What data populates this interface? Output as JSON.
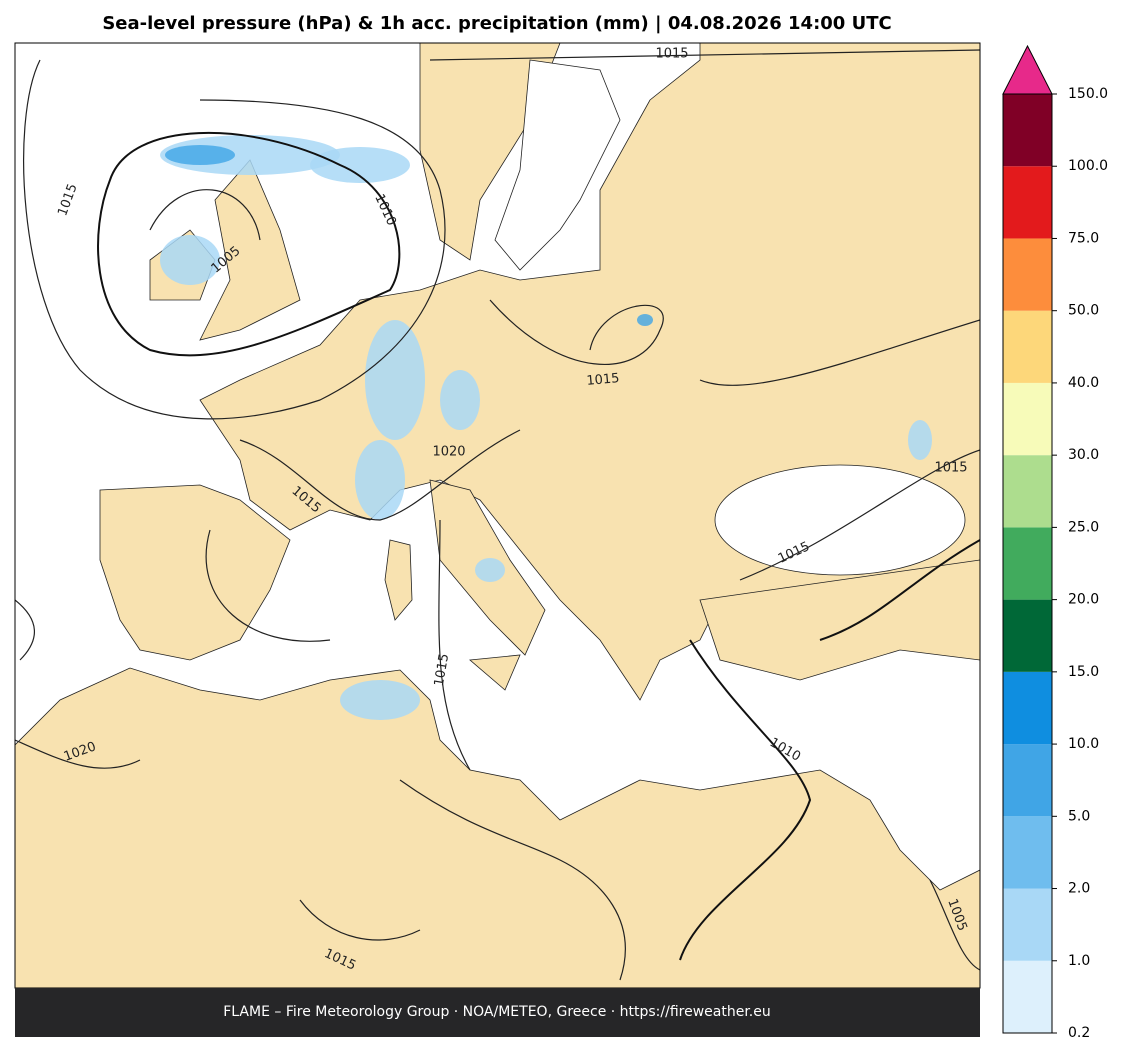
{
  "title": "Sea-level pressure (hPa) & 1h acc. precipitation (mm)  |  04.08.2026 14:00 UTC",
  "contour_labels": [
    "1015",
    "1015",
    "1010",
    "1005",
    "1015",
    "1020",
    "1015",
    "1015",
    "1015",
    "1020",
    "1015",
    "1010",
    "1015",
    "1005"
  ],
  "colorbar": {
    "ticks": [
      0.2,
      {
        "value": 1,
        "label": "1.0"
      },
      {
        "value": 2,
        "label": "2.0"
      },
      {
        "value": 5,
        "label": "5.0"
      },
      {
        "value": 10,
        "label": "10.0"
      },
      {
        "value": 15,
        "label": "15.0"
      },
      {
        "value": 20,
        "label": "20.0"
      },
      {
        "value": 25,
        "label": "25.0"
      },
      {
        "value": 30,
        "label": "30.0"
      },
      {
        "value": 40,
        "label": "40.0"
      },
      {
        "value": 50,
        "label": "50.0"
      },
      {
        "value": 75,
        "label": "75.0"
      },
      {
        "value": 100,
        "label": "100.0"
      },
      {
        "value": 150,
        "label": "150.0"
      }
    ],
    "colors": [
      "#ddf0fc",
      "#a9d8f6",
      "#6fbdee",
      "#40a5e6",
      "#0f8ee0",
      "#006837",
      "#41ab5d",
      "#addd8e",
      "#f7fbb9",
      "#fdd77a",
      "#fd8d3c",
      "#e31a1c",
      "#800026"
    ],
    "extend_color": "#e7298a"
  },
  "footer": "FLAME – Fire Meteorology Group · NOA/METEO, Greece · https://fireweather.eu"
}
